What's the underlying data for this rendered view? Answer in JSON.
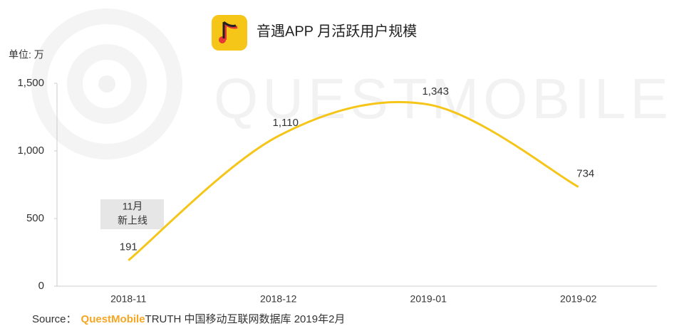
{
  "chart_data": {
    "type": "line",
    "title": "音遇APP 月活跃用户规模",
    "unit_label": "单位: 万",
    "watermark": "QUESTMOBILE",
    "categories": [
      "2018-11",
      "2018-12",
      "2019-01",
      "2019-02"
    ],
    "series": [
      {
        "name": "音遇",
        "color": "#f5c518",
        "values": [
          191,
          1110,
          1343,
          734
        ],
        "value_labels": [
          "191",
          "1,110",
          "1,343",
          "734"
        ]
      }
    ],
    "ylim": [
      0,
      1500
    ],
    "yticks": [
      0,
      500,
      {
        "value": 1000,
        "label": "1,000"
      },
      {
        "value": 1500,
        "label": "1,500"
      }
    ],
    "annotation": [
      "11月",
      "新上线"
    ],
    "source": {
      "prefix": "Source：",
      "brand": "QuestMobile",
      "text": "TRUTH 中国移动互联网数据库 2019年2月"
    }
  }
}
